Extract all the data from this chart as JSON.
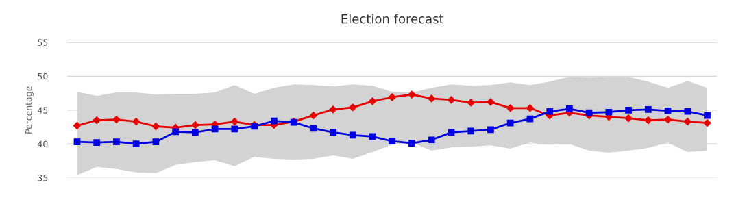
{
  "chart_data": {
    "type": "line",
    "title": "Election forecast",
    "ylabel": "Percentage",
    "categories": [
      null,
      null,
      null,
      null,
      null,
      null,
      null,
      null,
      null,
      null,
      null,
      null,
      null,
      null,
      null,
      null,
      null,
      null,
      null,
      null,
      null,
      null,
      null,
      null,
      null,
      null,
      null,
      null,
      null,
      null,
      null,
      null,
      null
    ],
    "series": [
      {
        "color": "#e60000",
        "marker": "diamond",
        "values": [
          42.7,
          43.5,
          43.6,
          43.3,
          42.6,
          42.4,
          42.8,
          42.9,
          43.3,
          42.8,
          42.8,
          43.3,
          44.2,
          45.1,
          45.4,
          46.3,
          46.9,
          47.3,
          46.7,
          46.5,
          46.1,
          46.2,
          45.3,
          45.3,
          44.2,
          44.6,
          44.2,
          44.0,
          43.8,
          43.5,
          43.6,
          43.3,
          43.1
        ],
        "lower": [
          35.4,
          36.6,
          36.3,
          35.8,
          35.7,
          36.9,
          37.3,
          37.6,
          36.7,
          38.1,
          37.8,
          37.7,
          37.8,
          38.3,
          37.8,
          38.8,
          39.9,
          40.2,
          39.0,
          39.5,
          39.6,
          39.8,
          39.3,
          40.2,
          39.9,
          40.0,
          39.0,
          38.7,
          39.0,
          39.4,
          40.2,
          38.8,
          39.0
        ],
        "upper": [
          47.7,
          47.1,
          47.6,
          47.6,
          47.3,
          47.4,
          47.4,
          47.6,
          48.7,
          47.4,
          48.3,
          48.8,
          48.7,
          48.5,
          48.8,
          48.6,
          47.7,
          47.6,
          48.3,
          48.8,
          48.6,
          48.7,
          49.1,
          48.7,
          49.2,
          49.9,
          49.8,
          49.9,
          49.9,
          49.2,
          48.3,
          49.3,
          48.3
        ]
      },
      {
        "color": "#0000e0",
        "marker": "square",
        "values": [
          40.3,
          40.2,
          40.3,
          40.0,
          40.3,
          41.8,
          41.7,
          42.2,
          42.2,
          42.6,
          43.4,
          43.2,
          42.3,
          41.7,
          41.3,
          41.1,
          40.4,
          40.1,
          40.6,
          41.7,
          41.9,
          42.1,
          43.1,
          43.7,
          44.8,
          45.2,
          44.6,
          44.7,
          45.0,
          45.1,
          44.9,
          44.8,
          44.2
        ]
      }
    ],
    "ylim": [
      35,
      55
    ],
    "yticks": [
      35,
      40,
      45,
      50,
      55
    ],
    "grid": "y",
    "tick_labels": "y"
  }
}
